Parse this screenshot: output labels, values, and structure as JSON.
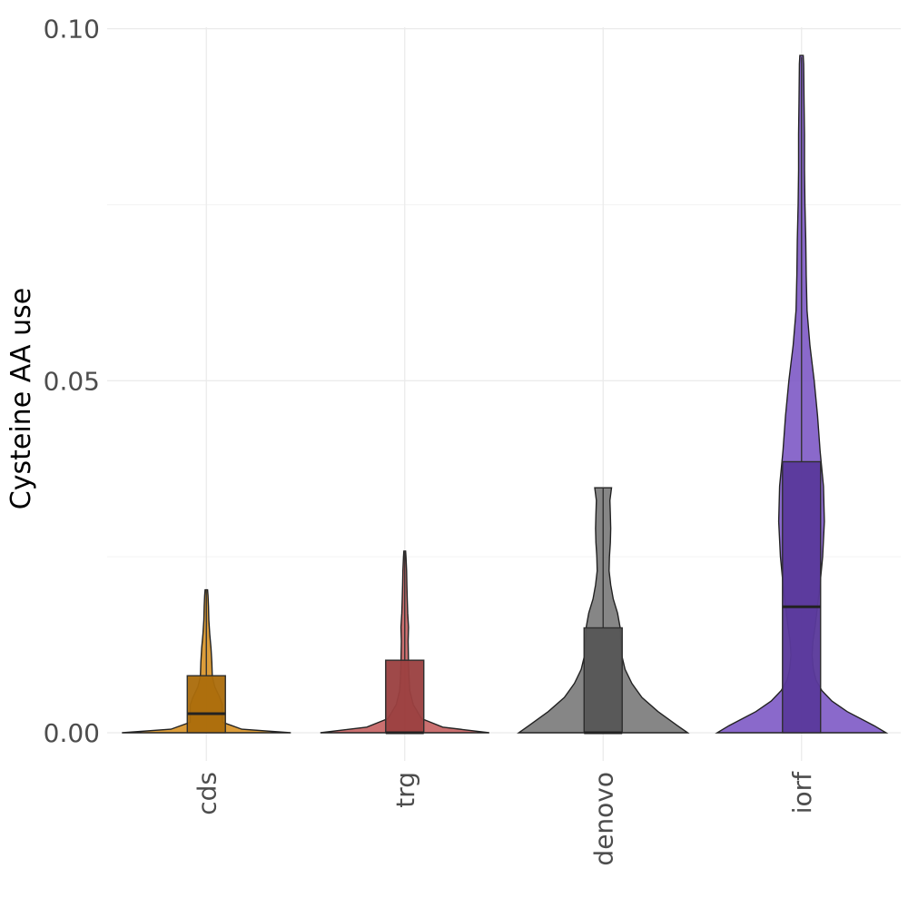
{
  "chart_data": {
    "type": "violin",
    "ylabel": "Cysteine AA use",
    "xlabel": "",
    "ylim": [
      -0.004,
      0.1015
    ],
    "y_ticks": [
      0.0,
      0.05,
      0.1
    ],
    "y_tick_labels": [
      "0.00",
      "0.05",
      "0.10"
    ],
    "y_minor_ticks": [
      0.025,
      0.075
    ],
    "grid": true,
    "categories": [
      "cds",
      "trg",
      "denovo",
      "iorf"
    ],
    "series": [
      {
        "category": "cds",
        "color": "#D4870F",
        "box": {
          "q1": 0.0,
          "median": 0.0027,
          "q3": 0.0081,
          "whisker_low": 0.0,
          "whisker_high": 0.0202
        },
        "violin_max_y": 0.0203,
        "density": [
          [
            0.0,
            1.0
          ],
          [
            0.0005,
            0.42
          ],
          [
            0.0015,
            0.19
          ],
          [
            0.0025,
            0.19
          ],
          [
            0.004,
            0.19
          ],
          [
            0.005,
            0.16
          ],
          [
            0.0065,
            0.1
          ],
          [
            0.008,
            0.07
          ],
          [
            0.01,
            0.065
          ],
          [
            0.012,
            0.055
          ],
          [
            0.014,
            0.04
          ],
          [
            0.016,
            0.03
          ],
          [
            0.018,
            0.025
          ],
          [
            0.0195,
            0.02
          ],
          [
            0.0203,
            0.015
          ]
        ]
      },
      {
        "category": "trg",
        "color": "#C05050",
        "box": {
          "q1": 0.0,
          "median": 0.0,
          "q3": 0.0103,
          "whisker_low": 0.0,
          "whisker_high": 0.0258
        },
        "violin_max_y": 0.0258,
        "density": [
          [
            0.0,
            1.0
          ],
          [
            0.0008,
            0.45
          ],
          [
            0.002,
            0.2
          ],
          [
            0.004,
            0.1
          ],
          [
            0.006,
            0.06
          ],
          [
            0.008,
            0.05
          ],
          [
            0.01,
            0.045
          ],
          [
            0.013,
            0.04
          ],
          [
            0.015,
            0.045
          ],
          [
            0.017,
            0.035
          ],
          [
            0.019,
            0.03
          ],
          [
            0.021,
            0.025
          ],
          [
            0.023,
            0.022
          ],
          [
            0.025,
            0.015
          ],
          [
            0.0258,
            0.01
          ]
        ]
      },
      {
        "category": "denovo",
        "color": "#6B6B6B",
        "box": {
          "q1": 0.0,
          "median": 0.0,
          "q3": 0.0149,
          "whisker_low": 0.0,
          "whisker_high": 0.0348
        },
        "violin_max_y": 0.0348,
        "density": [
          [
            0.0,
            1.0
          ],
          [
            0.001,
            0.88
          ],
          [
            0.003,
            0.65
          ],
          [
            0.005,
            0.46
          ],
          [
            0.007,
            0.34
          ],
          [
            0.009,
            0.26
          ],
          [
            0.011,
            0.22
          ],
          [
            0.013,
            0.21
          ],
          [
            0.015,
            0.2
          ],
          [
            0.017,
            0.17
          ],
          [
            0.019,
            0.12
          ],
          [
            0.021,
            0.09
          ],
          [
            0.023,
            0.07
          ],
          [
            0.025,
            0.075
          ],
          [
            0.027,
            0.085
          ],
          [
            0.029,
            0.09
          ],
          [
            0.031,
            0.085
          ],
          [
            0.033,
            0.08
          ],
          [
            0.0348,
            0.1
          ]
        ]
      },
      {
        "category": "iorf",
        "color": "#7048C0",
        "box": {
          "q1": 0.0,
          "median": 0.0179,
          "q3": 0.0385,
          "whisker_low": 0.0,
          "whisker_high": 0.096
        },
        "violin_max_y": 0.0962,
        "density": [
          [
            0.0,
            1.0
          ],
          [
            0.001,
            0.86
          ],
          [
            0.002,
            0.7
          ],
          [
            0.003,
            0.54
          ],
          [
            0.0045,
            0.36
          ],
          [
            0.006,
            0.24
          ],
          [
            0.0075,
            0.17
          ],
          [
            0.009,
            0.14
          ],
          [
            0.011,
            0.125
          ],
          [
            0.013,
            0.135
          ],
          [
            0.015,
            0.16
          ],
          [
            0.02,
            0.21
          ],
          [
            0.025,
            0.25
          ],
          [
            0.03,
            0.27
          ],
          [
            0.035,
            0.26
          ],
          [
            0.04,
            0.22
          ],
          [
            0.045,
            0.19
          ],
          [
            0.05,
            0.15
          ],
          [
            0.055,
            0.1
          ],
          [
            0.06,
            0.065
          ],
          [
            0.065,
            0.055
          ],
          [
            0.07,
            0.05
          ],
          [
            0.075,
            0.04
          ],
          [
            0.08,
            0.035
          ],
          [
            0.085,
            0.035
          ],
          [
            0.09,
            0.03
          ],
          [
            0.095,
            0.025
          ],
          [
            0.0962,
            0.02
          ]
        ]
      }
    ]
  }
}
